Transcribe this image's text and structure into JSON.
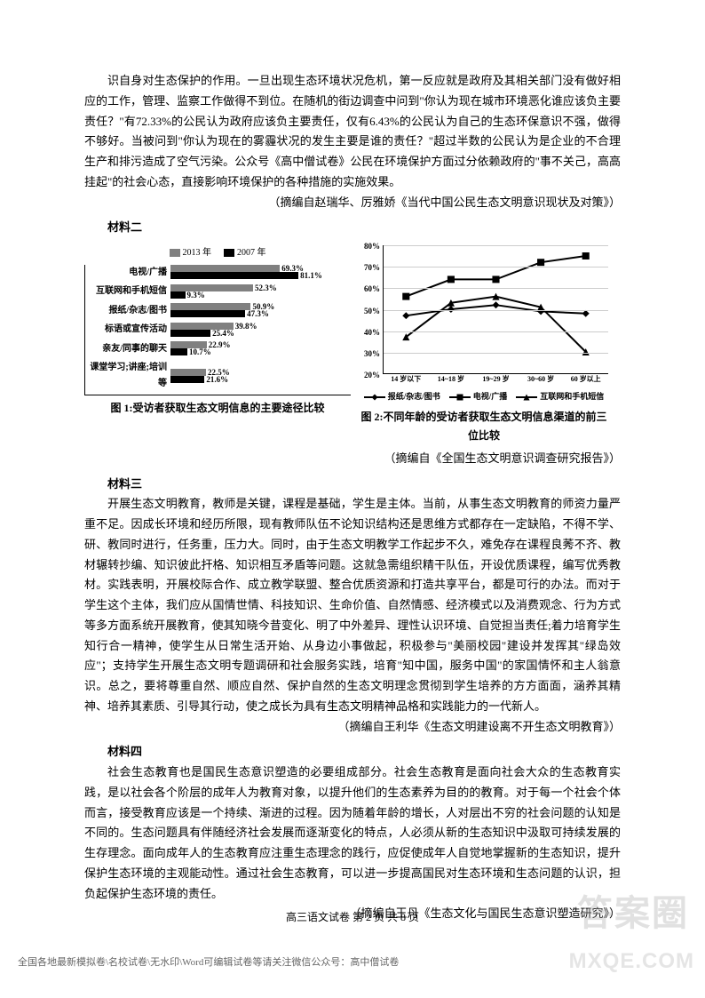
{
  "para1": "识自身对生态保护的作用。一旦出现生态环境状况危机，第一反应就是政府及其相关部门没有做好相应的工作，管理、监察工作做得不到位。在随机的街边调查中问到\"你认为现在城市环境恶化谁应该负主要责任？\"有72.33%的公民认为政府应该负主要责任，仅有6.43%的公民认为自己的生态环保意识不强，做得不够好。当被问到\"你认为现在的雾霾状况的发生主要是谁的责任？\"超过半数的公民认为是企业的不合理生产和排污造成了空气污染。公众号《高中僧试卷》公民在环境保护方面过分依赖政府的\"事不关己，高高挂起\"的社会心态，直接影响环境保护的各种措施的实施效果。",
  "source1": "（摘编自赵瑞华、厉雅娇《当代中国公民生态文明意识现状及对策》）",
  "heading2": "材料二",
  "chart1": {
    "legend_2013": "2013 年",
    "legend_2007": "2007 年",
    "color_2013": "#808080",
    "color_2007": "#000000",
    "max": 90,
    "categories": [
      {
        "label": "电视/广播",
        "v2013": 69.3,
        "v2007": 81.1,
        "t2013": "69.3%",
        "t2007": "81.1%"
      },
      {
        "label": "互联网和手机短信",
        "v2013": 52.3,
        "v2007": 9.3,
        "t2013": "52.3%",
        "t2007": "9.3%"
      },
      {
        "label": "报纸/杂志/图书",
        "v2013": 50.9,
        "v2007": 47.3,
        "t2013": "50.9%",
        "t2007": "47.3%"
      },
      {
        "label": "标语或宣传活动",
        "v2013": 39.8,
        "v2007": 25.4,
        "t2013": "39.8%",
        "t2007": "25.4%"
      },
      {
        "label": "亲友/同事的聊天",
        "v2013": 22.9,
        "v2007": 10.7,
        "t2013": "22.9%",
        "t2007": "10.7%"
      },
      {
        "label": "课堂学习;讲座;培训等",
        "v2013": 22.5,
        "v2007": 21.6,
        "t2013": "22.5%",
        "t2007": "21.6%"
      }
    ],
    "caption": "图 1:受访者获取生态文明信息的主要途径比较"
  },
  "chart2": {
    "ymin": 20,
    "ymax": 80,
    "ystep": 10,
    "xlabels": [
      "14 岁以下",
      "14~18 岁",
      "19~29 岁",
      "30~60 岁",
      "60 岁以上"
    ],
    "series": [
      {
        "name": "报纸/杂志/图书",
        "marker": "diamond",
        "values": [
          47,
          50,
          52,
          49,
          48
        ]
      },
      {
        "name": "电视/广播",
        "marker": "square",
        "values": [
          56,
          64,
          64,
          72,
          75
        ]
      },
      {
        "name": "互联网和手机短信",
        "marker": "triangle",
        "values": [
          37,
          53,
          56,
          51,
          30
        ]
      }
    ],
    "caption": "图 2:不同年龄的受访者获取生态文明信息渠道的前三位比较"
  },
  "source2": "（摘编自《全国生态文明意识调查研究报告》）",
  "heading3": "材料三",
  "para3": "开展生态文明教育，教师是关键，课程是基础，学生是主体。当前，从事生态文明教育的师资力量严重不足。因成长环境和经历所限，现有教师队伍不论知识结构还是思维方式都存在一定缺陷，不得不学、研、教同时进行，任务重，压力大。同时，由于生态文明教学工作起步不久，难免存在课程良莠不齐、教材辗转抄编、知识彼此扞格、知识相互矛盾等问题。这就急需组织精干队伍，开设优质课程，编写优秀教材。实践表明，开展校际合作、成立教学联盟、整合优质资源和打造共享平台，都是可行的办法。而对于学生这个主体，我们应从国情世情、科技知识、生命价值、自然情感、经济模式以及消费观念、行为方式等多方面系统开展教育，使其知晓今昔变化、明了中外差异、理性认识环境、自觉担当责任;着力培育学生知行合一精神，使学生从日常生活开始、从身边小事做起，积极参与\"美丽校园\"建设并发挥其\"绿岛效应\"；支持学生开展生态文明专题调研和社会服务实践，培育\"知中国，服务中国\"的家国情怀和主人翁意识。总之，要将尊重自然、顺应自然、保护自然的生态文明理念贯彻到学生培养的方方面面，涵养其精神、培养其素质、引导其行动，使之成长为具有生态文明精神品格和实践能力的一代新人。",
  "source3": "（摘编自王利华《生态文明建设离不开生态文明教育》）",
  "heading4": "材料四",
  "para4": "社会生态教育也是国民生态意识塑造的必要组成部分。社会生态教育是面向社会大众的生态教育实践，是以社会各个阶层的成年人为教育对象，以提升他们的生态素养为目的的教育。对于每一个社会个体而言，接受教育应该是一个持续、渐进的过程。因为随着年龄的增长，人对层出不穷的社会问题的认知是不同的。生态问题具有伴随经济社会发展而逐渐变化的特点，人必须从新的生态知识中汲取可持续发展的生存理念。面向成年人的生态教育应注重生态理念的践行，应促使成年人自觉地掌握新的生态知识，提升保护生态环境的主观能动性。通过社会生态教育，可以进一步提高国民对生态环境和生态问题的认识，担负起保护生态环境的责任。",
  "source4": "（摘编自王丹《生态文化与国民生态意识塑造研究》）",
  "footer_page": "高三语文试卷  第 2 页  共 8 页",
  "footer_note": "全国各地最新模拟卷\\名校试卷\\无水印\\Word可编辑试卷等请关注微信公众号：高中僧试卷",
  "watermark1": "答案圈",
  "watermark2": "MXQE.COM"
}
